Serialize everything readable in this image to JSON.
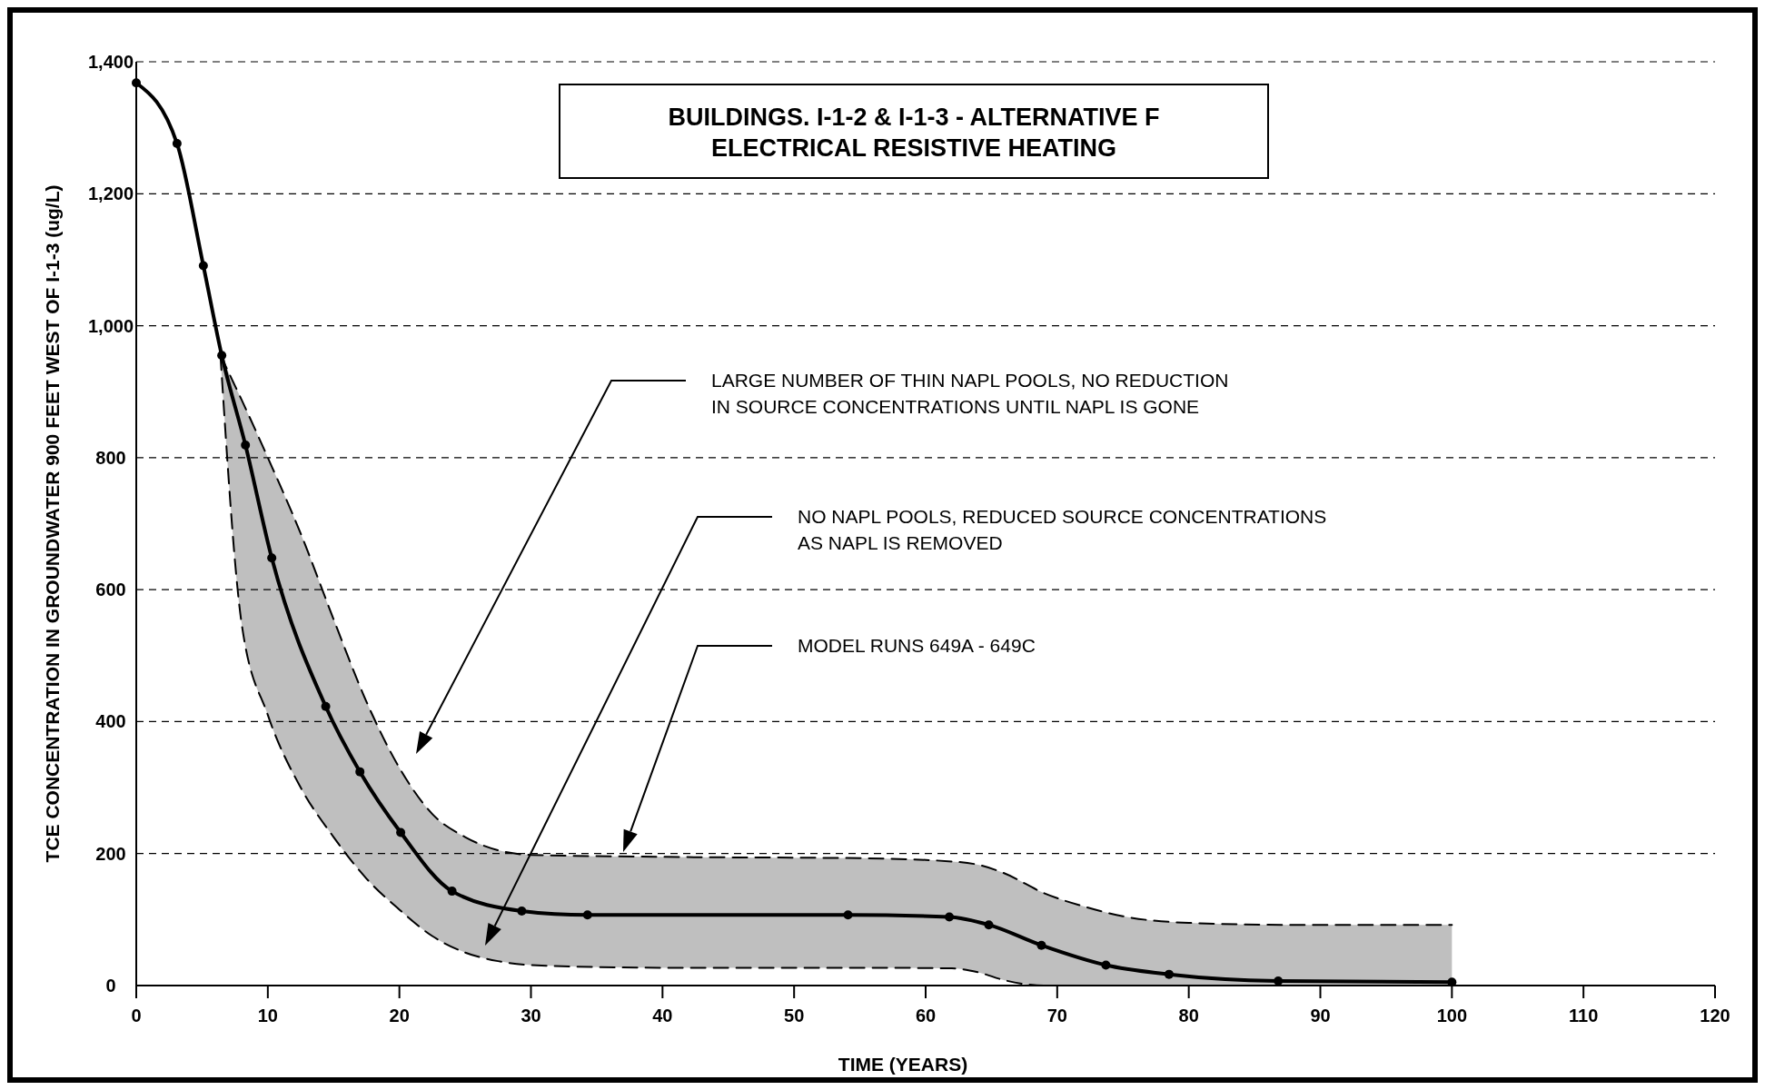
{
  "chart_data": {
    "type": "line",
    "title": "BUILDINGS. I-1-2 & I-1-3 - ALTERNATIVE F\nELECTRICAL RESISTIVE HEATING",
    "xlabel": "TIME (YEARS)",
    "ylabel": "TCE CONCENTRATION IN GROUNDWATER 900 FEET WEST OF I-1-3 (ug/L)",
    "xlim": [
      0,
      120
    ],
    "xticks": [
      0,
      10,
      20,
      30,
      40,
      50,
      60,
      70,
      80,
      90,
      100,
      110,
      120
    ],
    "ylim": [
      0,
      1400
    ],
    "yticks": [
      0,
      200,
      400,
      600,
      800,
      {
        "value": 1000,
        "label": "1,000"
      },
      {
        "value": 1200,
        "label": "1,200"
      },
      {
        "value": 1400,
        "label": "1,400"
      }
    ],
    "grid": "y",
    "series": [
      {
        "color": "#000000",
        "marker": "circle",
        "line_style": "solid",
        "x": [
          0,
          3.1,
          5.1,
          6.5,
          8.3,
          10.3,
          14.4,
          17,
          20.1,
          24,
          29.3,
          34.3,
          54.1,
          61.8,
          64.8,
          68.8,
          73.7,
          78.5,
          86.8,
          100
        ],
        "values": [
          1368,
          1276,
          1091,
          955,
          819,
          648,
          423,
          324,
          232,
          143,
          113,
          107,
          107,
          104,
          92,
          61,
          31,
          17,
          7,
          5
        ]
      },
      {
        "color": "#000000",
        "marker": "none",
        "line_style": "dashed",
        "x": [
          6.4,
          8,
          10,
          12.5,
          15,
          17.5,
          20,
          22.5,
          25,
          27.5,
          30,
          40,
          55,
          62,
          64,
          66,
          69,
          72,
          75,
          80,
          88,
          100
        ],
        "values": [
          955,
          888,
          800,
          685,
          555,
          430,
          330,
          260,
          225,
          205,
          198,
          195,
          193,
          188,
          183,
          170,
          140,
          120,
          105,
          95,
          92,
          92
        ],
        "upper": [
          955,
          888,
          800,
          685,
          555,
          430,
          330,
          260,
          225,
          205,
          198,
          195,
          193,
          188,
          183,
          170,
          140,
          120,
          105,
          95,
          92,
          92
        ],
        "lower": [
          955,
          550,
          410,
          300,
          225,
          162,
          115,
          75,
          50,
          37,
          31,
          27,
          27,
          26,
          20,
          8,
          0,
          0,
          0,
          0,
          0,
          0
        ]
      },
      {
        "color": "#000000",
        "marker": "none",
        "line_style": "dashed",
        "x": [
          6.4,
          8,
          10,
          12.5,
          15,
          17.5,
          20,
          22.5,
          25,
          27.5,
          30,
          40,
          55,
          62,
          64,
          66,
          69,
          72,
          75,
          80,
          88,
          100
        ],
        "values": [
          955,
          550,
          410,
          300,
          225,
          162,
          115,
          75,
          50,
          37,
          31,
          27,
          27,
          26,
          20,
          8,
          0,
          0,
          0,
          0,
          0,
          0
        ]
      }
    ],
    "annotations": [
      "LARGE NUMBER OF THIN NAPL POOLS, NO REDUCTION\nIN SOURCE CONCENTRATIONS UNTIL NAPL IS GONE",
      "NO NAPL POOLS, REDUCED SOURCE CONCENTRATIONS\nAS NAPL IS REMOVED",
      "MODEL RUNS 649A - 649C"
    ]
  }
}
